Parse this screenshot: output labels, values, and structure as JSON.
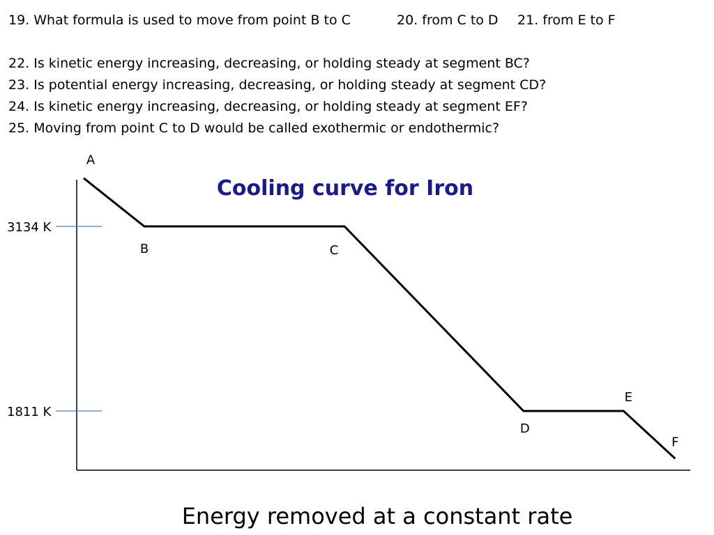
{
  "questions": {
    "q19": "19. What formula is used to move from point B to C",
    "q20": "20. from C to D",
    "q21": "21.  from E to F",
    "q22": "22.  Is kinetic energy increasing, decreasing, or holding steady at segment BC?",
    "q23": "23.  Is potential energy increasing, decreasing, or holding steady at segment CD?",
    "q24": "24.  Is kinetic energy increasing, decreasing, or holding steady at segment EF?",
    "q25": "25.  Moving from point C to D would be called exothermic or endothermic?"
  },
  "chart_data": {
    "type": "line",
    "title": "Cooling curve for Iron",
    "title_color": "#1a1a8c",
    "xlabel": "Energy removed at a constant rate",
    "ylabel": "",
    "line_color": "#000000",
    "tick_color": "#4a7ebb",
    "yticks": [
      {
        "label": "3134 K",
        "value": 3134
      },
      {
        "label": "1811 K",
        "value": 1811
      }
    ],
    "points": [
      {
        "name": "A",
        "x": 0.0,
        "y": 3480
      },
      {
        "name": "B",
        "x": 0.1,
        "y": 3134
      },
      {
        "name": "C",
        "x": 0.43,
        "y": 3134
      },
      {
        "name": "D",
        "x": 0.725,
        "y": 1811
      },
      {
        "name": "E",
        "x": 0.89,
        "y": 1811
      },
      {
        "name": "F",
        "x": 0.975,
        "y": 1470
      }
    ]
  }
}
